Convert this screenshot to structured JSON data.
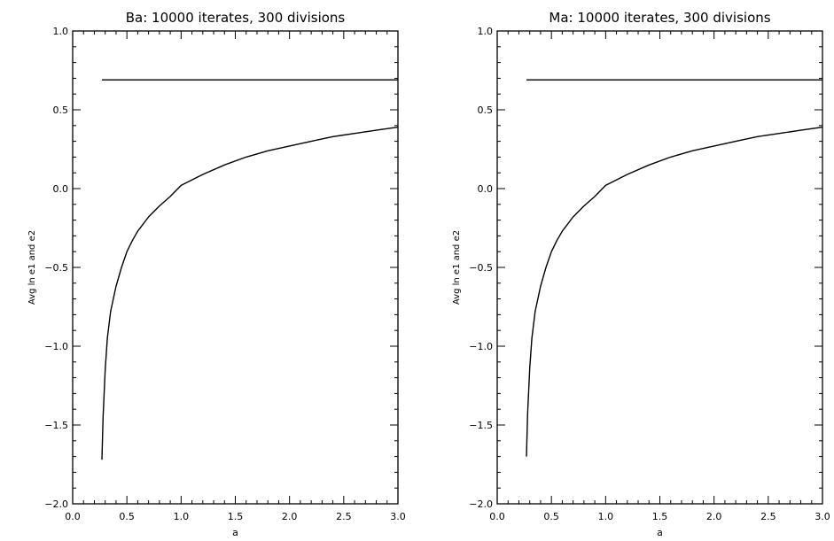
{
  "chart_data": [
    {
      "type": "line",
      "title": "Ba: 10000 iterates, 300 divisions",
      "xlabel": "a",
      "ylabel": "Avg ln e1 and e2",
      "xlim": [
        0.0,
        3.0
      ],
      "ylim": [
        -2.0,
        1.0
      ],
      "xticks": [
        "0.0",
        "0.5",
        "1.0",
        "1.5",
        "2.0",
        "2.5",
        "3.0"
      ],
      "yticks": [
        "-2.0",
        "-1.5",
        "-1.0",
        "-0.5",
        "0.0",
        "0.5",
        "1.0"
      ],
      "grid": false,
      "series": [
        {
          "x": [
            0.27,
            0.28,
            0.3,
            0.32,
            0.35,
            0.4,
            0.45,
            0.5,
            0.55,
            0.6,
            0.7,
            0.8,
            0.9,
            1.0,
            1.2,
            1.4,
            1.6,
            1.8,
            2.0,
            2.2,
            2.4,
            2.6,
            2.8,
            3.0
          ],
          "y": [
            -1.72,
            -1.45,
            -1.15,
            -0.95,
            -0.78,
            -0.62,
            -0.5,
            -0.4,
            -0.33,
            -0.27,
            -0.18,
            -0.11,
            -0.05,
            0.02,
            0.09,
            0.15,
            0.2,
            0.24,
            0.27,
            0.3,
            0.33,
            0.35,
            0.37,
            0.39
          ]
        },
        {
          "x": [
            0.27,
            3.0
          ],
          "y": [
            0.69,
            0.69
          ]
        }
      ]
    },
    {
      "type": "line",
      "title": "Ma: 10000 iterates, 300 divisions",
      "xlabel": "a",
      "ylabel": "Avg ln e1 and e2",
      "xlim": [
        0.0,
        3.0
      ],
      "ylim": [
        -2.0,
        1.0
      ],
      "xticks": [
        "0.0",
        "0.5",
        "1.0",
        "1.5",
        "2.0",
        "2.5",
        "3.0"
      ],
      "yticks": [
        "-2.0",
        "-1.5",
        "-1.0",
        "-0.5",
        "0.0",
        "0.5",
        "1.0"
      ],
      "grid": false,
      "series": [
        {
          "x": [
            0.27,
            0.28,
            0.3,
            0.32,
            0.35,
            0.4,
            0.45,
            0.5,
            0.55,
            0.6,
            0.7,
            0.8,
            0.9,
            1.0,
            1.2,
            1.4,
            1.6,
            1.8,
            2.0,
            2.2,
            2.4,
            2.6,
            2.8,
            3.0
          ],
          "y": [
            -1.7,
            -1.43,
            -1.14,
            -0.95,
            -0.78,
            -0.62,
            -0.5,
            -0.4,
            -0.33,
            -0.27,
            -0.18,
            -0.11,
            -0.05,
            0.02,
            0.09,
            0.15,
            0.2,
            0.24,
            0.27,
            0.3,
            0.33,
            0.35,
            0.37,
            0.39
          ]
        },
        {
          "x": [
            0.27,
            3.0
          ],
          "y": [
            0.69,
            0.69
          ]
        }
      ]
    }
  ]
}
